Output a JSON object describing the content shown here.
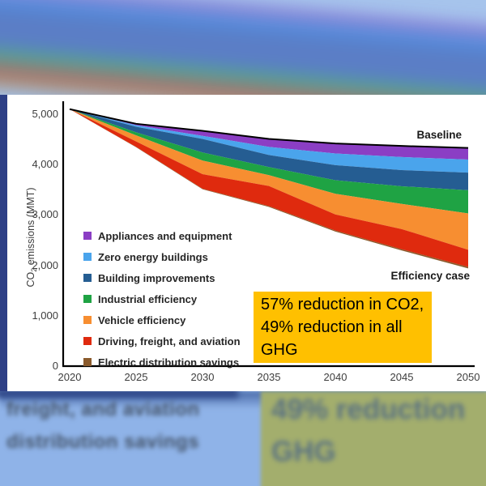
{
  "chart": {
    "ylabel_pre": "CO",
    "ylabel_sub": "2",
    "ylabel_post": " emissions (MMT)",
    "baseline_label": "Baseline",
    "efficiency_case_label": "Efficiency case"
  },
  "callout": {
    "text": "57% reduction in CO2,\n49% reduction in all\nGHG",
    "bg_color": "#FFC000"
  },
  "legend": {
    "items": [
      {
        "label": "Appliances and equipment",
        "color": "#8B3EC4"
      },
      {
        "label": "Zero energy buildings",
        "color": "#4AA4EC"
      },
      {
        "label": "Building improvements",
        "color": "#255D92"
      },
      {
        "label": "Industrial efficiency",
        "color": "#1FA344"
      },
      {
        "label": "Vehicle efficiency",
        "color": "#F78E31"
      },
      {
        "label": "Driving, freight, and aviation",
        "color": "#DF2A0E"
      },
      {
        "label": "Electric distribution savings",
        "color": "#8A5A2C"
      }
    ]
  },
  "chart_data": {
    "type": "area",
    "title": "",
    "xlabel": "",
    "ylabel": "CO2 emissions (MMT)",
    "ylim": [
      0,
      5000
    ],
    "xlim": [
      2020,
      2050
    ],
    "grid": false,
    "legend_position": "inside-left",
    "x": [
      2020,
      2025,
      2030,
      2035,
      2040,
      2045,
      2050
    ],
    "baseline": [
      5100,
      4810,
      4670,
      4510,
      4420,
      4370,
      4330
    ],
    "efficiency_case": [
      5100,
      4345,
      3510,
      3160,
      2670,
      2295,
      1940
    ],
    "series": [
      {
        "name": "Appliances and equipment",
        "color": "#8B3EC4",
        "values": [
          0,
          30,
          100,
          160,
          200,
          220,
          230
        ]
      },
      {
        "name": "Zero energy buildings",
        "color": "#4AA4EC",
        "values": [
          0,
          30,
          60,
          160,
          230,
          260,
          260
        ]
      },
      {
        "name": "Building improvements",
        "color": "#255D92",
        "values": [
          0,
          110,
          270,
          240,
          300,
          320,
          350
        ]
      },
      {
        "name": "Industrial efficiency",
        "color": "#1FA344",
        "values": [
          0,
          60,
          160,
          160,
          270,
          350,
          460
        ]
      },
      {
        "name": "Vehicle efficiency",
        "color": "#F78E31",
        "values": [
          0,
          120,
          270,
          215,
          410,
          500,
          720
        ]
      },
      {
        "name": "Driving, freight, and aviation",
        "color": "#DF2A0E",
        "values": [
          0,
          110,
          290,
          400,
          320,
          400,
          340
        ]
      },
      {
        "name": "Electric distribution savings",
        "color": "#8A5A2C",
        "values": [
          0,
          5,
          10,
          15,
          20,
          25,
          30
        ]
      }
    ],
    "yticks": [
      {
        "v": 0,
        "label": "0"
      },
      {
        "v": 1000,
        "label": "1,000"
      },
      {
        "v": 2000,
        "label": "2,000"
      },
      {
        "v": 3000,
        "label": "3,000"
      },
      {
        "v": 4000,
        "label": "4,000"
      },
      {
        "v": 5000,
        "label": "5,000"
      }
    ],
    "xticks": [
      {
        "v": 2020,
        "label": "2020"
      },
      {
        "v": 2025,
        "label": "2025"
      },
      {
        "v": 2030,
        "label": "2030"
      },
      {
        "v": 2035,
        "label": "2035"
      },
      {
        "v": 2040,
        "label": "2040"
      },
      {
        "v": 2045,
        "label": "2045"
      },
      {
        "v": 2050,
        "label": "2050"
      }
    ]
  },
  "background_text": {
    "left_line1": "freight, and aviation",
    "left_line2": "distribution savings",
    "right_line1": "49% reduction",
    "right_line2": "GHG"
  }
}
